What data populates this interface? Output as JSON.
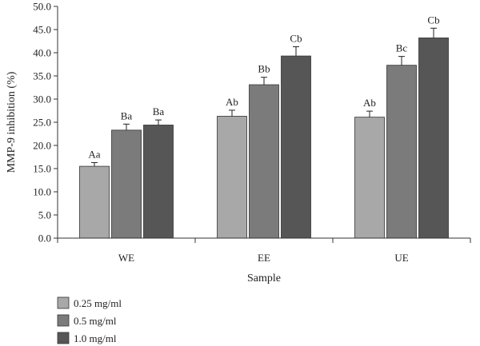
{
  "chart_data": {
    "type": "bar",
    "title": "",
    "xlabel": "Sample",
    "ylabel": "MMP-9 inhibition (%)",
    "ylim": [
      0,
      50
    ],
    "yticks": [
      "0.0",
      "5.0",
      "10.0",
      "15.0",
      "20.0",
      "25.0",
      "30.0",
      "35.0",
      "40.0",
      "45.0",
      "50.0"
    ],
    "categories": [
      "WE",
      "EE",
      "UE"
    ],
    "grid": false,
    "legend_position": "bottom-left",
    "series": [
      {
        "name": "0.25 mg/ml",
        "color": "#a8a8a8",
        "values": [
          15.5,
          26.3,
          26.1
        ],
        "errors": [
          0.8,
          1.3,
          1.3
        ],
        "labels": [
          "Aa",
          "Ab",
          "Ab"
        ]
      },
      {
        "name": "0.5 mg/ml",
        "color": "#7b7b7b",
        "values": [
          23.3,
          33.1,
          37.3
        ],
        "errors": [
          1.3,
          1.6,
          1.9
        ],
        "labels": [
          "Ba",
          "Bb",
          "Bc"
        ]
      },
      {
        "name": "1.0 mg/ml",
        "color": "#565656",
        "values": [
          24.4,
          39.3,
          43.2
        ],
        "errors": [
          1.1,
          2.0,
          2.1
        ],
        "labels": [
          "Ba",
          "Cb",
          "Cb"
        ]
      }
    ]
  }
}
